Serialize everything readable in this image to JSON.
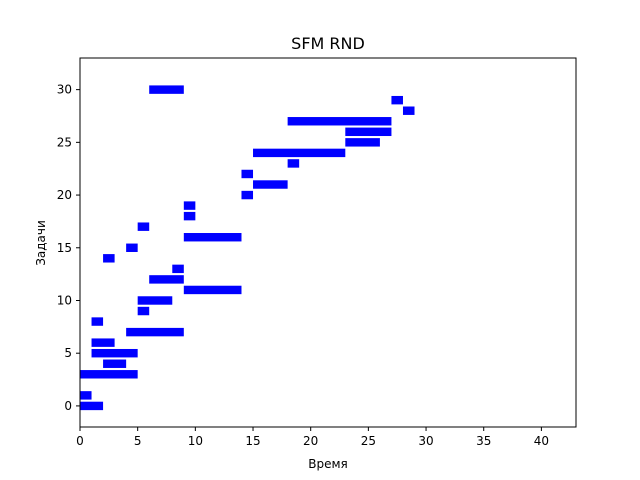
{
  "chart_data": {
    "type": "bar",
    "orientation": "horizontal-ranges",
    "title": "SFM RND",
    "xlabel": "Время",
    "ylabel": "Задачи",
    "xlim": [
      0,
      43
    ],
    "ylim": [
      -2,
      33
    ],
    "xticks": [
      0,
      5,
      10,
      15,
      20,
      25,
      30,
      35,
      40
    ],
    "yticks": [
      0,
      5,
      10,
      15,
      20,
      25,
      30
    ],
    "grid": false,
    "bar_color": "#0000ff",
    "bars": [
      {
        "task": 0,
        "start": 0,
        "end": 2
      },
      {
        "task": 1,
        "start": 0,
        "end": 1
      },
      {
        "task": 3,
        "start": 0,
        "end": 5
      },
      {
        "task": 4,
        "start": 2,
        "end": 4
      },
      {
        "task": 5,
        "start": 1,
        "end": 5
      },
      {
        "task": 6,
        "start": 1,
        "end": 3
      },
      {
        "task": 7,
        "start": 4,
        "end": 9
      },
      {
        "task": 8,
        "start": 1,
        "end": 2
      },
      {
        "task": 9,
        "start": 5,
        "end": 6
      },
      {
        "task": 10,
        "start": 5,
        "end": 8
      },
      {
        "task": 11,
        "start": 9,
        "end": 14
      },
      {
        "task": 12,
        "start": 6,
        "end": 9
      },
      {
        "task": 13,
        "start": 8,
        "end": 9
      },
      {
        "task": 14,
        "start": 2,
        "end": 3
      },
      {
        "task": 15,
        "start": 4,
        "end": 5
      },
      {
        "task": 16,
        "start": 9,
        "end": 14
      },
      {
        "task": 17,
        "start": 5,
        "end": 6
      },
      {
        "task": 18,
        "start": 9,
        "end": 10
      },
      {
        "task": 19,
        "start": 9,
        "end": 10
      },
      {
        "task": 20,
        "start": 14,
        "end": 15
      },
      {
        "task": 21,
        "start": 15,
        "end": 18
      },
      {
        "task": 22,
        "start": 14,
        "end": 15
      },
      {
        "task": 23,
        "start": 18,
        "end": 19
      },
      {
        "task": 24,
        "start": 15,
        "end": 23
      },
      {
        "task": 25,
        "start": 23,
        "end": 26
      },
      {
        "task": 26,
        "start": 23,
        "end": 27
      },
      {
        "task": 27,
        "start": 18,
        "end": 27
      },
      {
        "task": 28,
        "start": 28,
        "end": 29
      },
      {
        "task": 29,
        "start": 27,
        "end": 28
      },
      {
        "task": 30,
        "start": 6,
        "end": 9
      }
    ]
  }
}
